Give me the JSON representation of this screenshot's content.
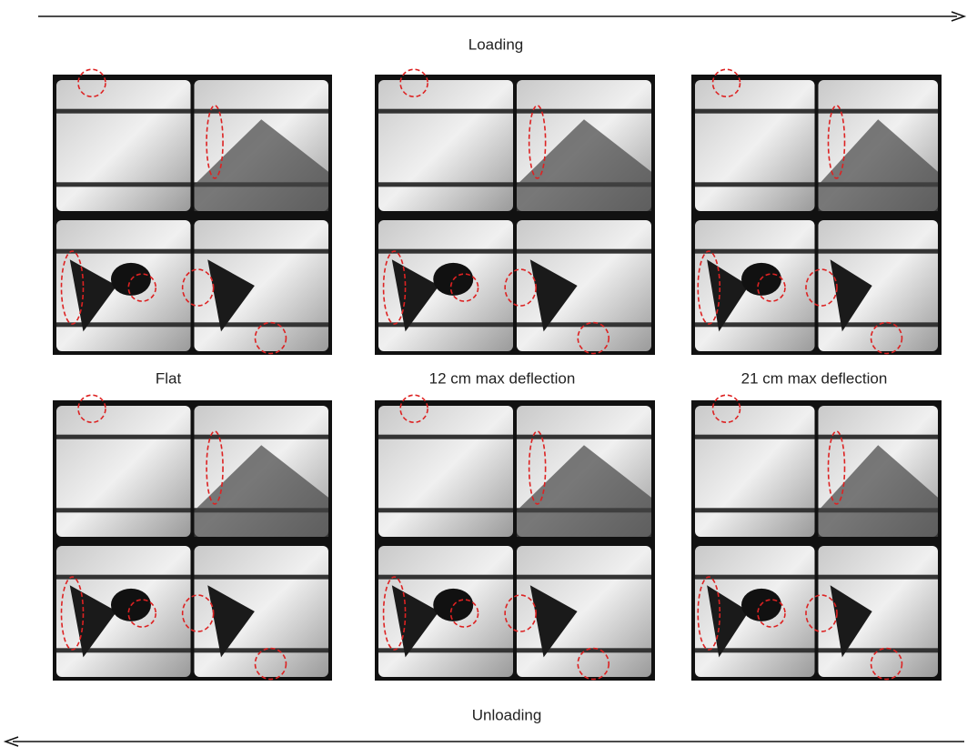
{
  "loading_label": "Loading",
  "unloading_label": "Unloading",
  "captions": [
    "Flat",
    "12 cm max deflection",
    "21 cm max deflection"
  ]
}
